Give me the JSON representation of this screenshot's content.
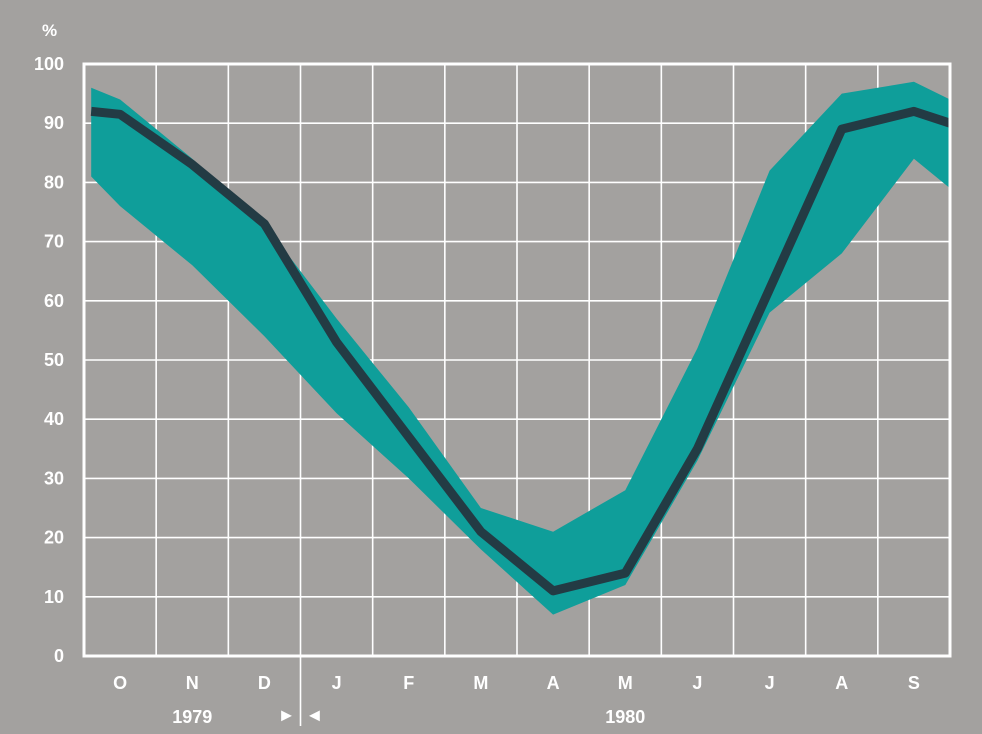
{
  "chart_data": {
    "type": "area",
    "ylabel_unit": "%",
    "ylim": [
      0,
      100
    ],
    "yticks": [
      "0",
      "10",
      "20",
      "30",
      "40",
      "50",
      "60",
      "70",
      "80",
      "90",
      "100"
    ],
    "categories": [
      "O",
      "N",
      "D",
      "J",
      "F",
      "M",
      "A",
      "M",
      "J",
      "J",
      "A",
      "S"
    ],
    "x": [
      -0.4,
      0.0,
      1.0,
      2.0,
      3.0,
      4.0,
      5.0,
      6.0,
      7.0,
      8.0,
      9.0,
      10.0,
      11.0,
      11.5
    ],
    "series": [
      {
        "role": "mean",
        "values": [
          92,
          91.5,
          83,
          73,
          53,
          37,
          21,
          11,
          14,
          35,
          62,
          89,
          92,
          90
        ]
      },
      {
        "role": "upper",
        "values": [
          96,
          94,
          84,
          73,
          57,
          42,
          25,
          21,
          28,
          52,
          82,
          95,
          97,
          94
        ]
      },
      {
        "role": "lower",
        "values": [
          81,
          76,
          66,
          54,
          41,
          30,
          18,
          7,
          12,
          33,
          58,
          68,
          84,
          79
        ]
      }
    ],
    "year_labels": [
      "1979",
      "1980"
    ],
    "year_divider": {
      "after_category_index": 2,
      "left_marker": "►",
      "right_marker": "◄"
    },
    "colors": {
      "background": "#a3a19f",
      "band": "#0f9e9a",
      "line": "#233b44",
      "grid": "#ffffff"
    },
    "grid": true
  }
}
